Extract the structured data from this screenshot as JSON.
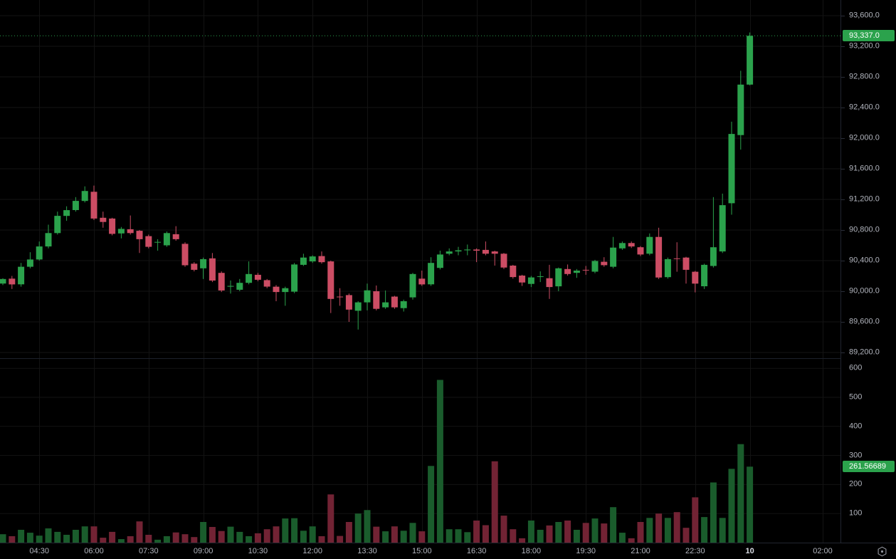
{
  "colors": {
    "background": "#000000",
    "grid": "#131313",
    "axis_text": "#b2b5be",
    "axis_text_bold": "#d8dbe3",
    "candle_up": "#2ba24c",
    "candle_down": "#cc4d64",
    "volume_up": "#1a5c2c",
    "volume_down": "#722334",
    "last_price_line": "#2ba24c",
    "price_badge_bg": "#2ba24c",
    "volume_badge_bg": "#2ba24c",
    "badge_text": "#ffffff"
  },
  "price_axis": {
    "current_price_label": "93,337.0",
    "labels": [
      {
        "text": "93,600.0",
        "price": 93600
      },
      {
        "text": "93,200.0",
        "price": 93200
      },
      {
        "text": "92,800.0",
        "price": 92800
      },
      {
        "text": "92,400.0",
        "price": 92400
      },
      {
        "text": "92,000.0",
        "price": 92000
      },
      {
        "text": "91,600.0",
        "price": 91600
      },
      {
        "text": "91,200.0",
        "price": 91200
      },
      {
        "text": "90,800.0",
        "price": 90800
      },
      {
        "text": "90,400.0",
        "price": 90400
      },
      {
        "text": "90,000.0",
        "price": 90000
      },
      {
        "text": "89,600.0",
        "price": 89600
      },
      {
        "text": "89,200.0",
        "price": 89200
      }
    ]
  },
  "volume_axis": {
    "current_volume_label": "261.56689",
    "labels": [
      {
        "text": "600",
        "value": 600
      },
      {
        "text": "500",
        "value": 500
      },
      {
        "text": "400",
        "value": 400
      },
      {
        "text": "300",
        "value": 300
      },
      {
        "text": "200",
        "value": 200
      },
      {
        "text": "100",
        "value": 100
      }
    ]
  },
  "time_axis": {
    "labels": [
      {
        "text": "04:30",
        "candle_index": 4,
        "bold": false
      },
      {
        "text": "06:00",
        "candle_index": 10,
        "bold": false
      },
      {
        "text": "07:30",
        "candle_index": 16,
        "bold": false
      },
      {
        "text": "09:00",
        "candle_index": 22,
        "bold": false
      },
      {
        "text": "10:30",
        "candle_index": 28,
        "bold": false
      },
      {
        "text": "12:00",
        "candle_index": 34,
        "bold": false
      },
      {
        "text": "13:30",
        "candle_index": 40,
        "bold": false
      },
      {
        "text": "15:00",
        "candle_index": 46,
        "bold": false
      },
      {
        "text": "16:30",
        "candle_index": 52,
        "bold": false
      },
      {
        "text": "18:00",
        "candle_index": 58,
        "bold": false
      },
      {
        "text": "19:30",
        "candle_index": 64,
        "bold": false
      },
      {
        "text": "21:00",
        "candle_index": 70,
        "bold": false
      },
      {
        "text": "22:30",
        "candle_index": 76,
        "bold": false
      },
      {
        "text": "10",
        "candle_index": 82,
        "bold": true
      },
      {
        "text": "02:00",
        "candle_index": 90,
        "bold": false
      }
    ]
  },
  "chart_data": {
    "type": "candlestick",
    "interval_minutes": 15,
    "panes": [
      "price",
      "volume"
    ],
    "price_axis_range": [
      89200,
      93600
    ],
    "volume_axis_range": [
      0,
      600
    ],
    "grid": true,
    "last_price": 93337.0,
    "last_volume": 261.56689,
    "columns": [
      "time",
      "open",
      "high",
      "low",
      "close",
      "volume"
    ],
    "candles": [
      [
        "03:30",
        90100,
        90170,
        90080,
        90160,
        29
      ],
      [
        "03:45",
        90165,
        90200,
        90030,
        90090,
        22
      ],
      [
        "04:00",
        90090,
        90370,
        90060,
        90320,
        44
      ],
      [
        "04:15",
        90320,
        90510,
        90300,
        90415,
        34
      ],
      [
        "04:30",
        90415,
        90650,
        90400,
        90585,
        24
      ],
      [
        "04:45",
        90585,
        90870,
        90560,
        90760,
        49
      ],
      [
        "05:00",
        90760,
        91040,
        90740,
        90985,
        37
      ],
      [
        "05:15",
        90985,
        91110,
        90920,
        91060,
        27
      ],
      [
        "05:30",
        91060,
        91230,
        91040,
        91180,
        44
      ],
      [
        "05:45",
        91180,
        91370,
        91160,
        91310,
        56
      ],
      [
        "06:00",
        91300,
        91380,
        90930,
        90950,
        56
      ],
      [
        "06:15",
        90960,
        91040,
        90830,
        90905,
        17
      ],
      [
        "06:30",
        90950,
        90960,
        90730,
        90750,
        37
      ],
      [
        "06:45",
        90755,
        90840,
        90690,
        90815,
        12
      ],
      [
        "07:00",
        90810,
        90990,
        90740,
        90760,
        22
      ],
      [
        "07:15",
        90790,
        90800,
        90500,
        90680,
        73
      ],
      [
        "07:30",
        90720,
        90740,
        90560,
        90580,
        27
      ],
      [
        "07:45",
        90640,
        90680,
        90530,
        90645,
        10
      ],
      [
        "08:00",
        90600,
        90780,
        90580,
        90760,
        22
      ],
      [
        "08:15",
        90745,
        90850,
        90660,
        90680,
        35
      ],
      [
        "08:30",
        90620,
        90640,
        90320,
        90340,
        29
      ],
      [
        "08:45",
        90360,
        90380,
        90260,
        90280,
        19
      ],
      [
        "09:00",
        90300,
        90440,
        90160,
        90420,
        71
      ],
      [
        "09:15",
        90430,
        90500,
        90120,
        90140,
        54
      ],
      [
        "09:30",
        90240,
        90260,
        89990,
        90010,
        40
      ],
      [
        "09:45",
        90060,
        90140,
        89970,
        90070,
        55
      ],
      [
        "10:00",
        90020,
        90160,
        90000,
        90110,
        37
      ],
      [
        "10:15",
        90110,
        90390,
        90090,
        90225,
        22
      ],
      [
        "10:30",
        90215,
        90240,
        90130,
        90150,
        32
      ],
      [
        "10:45",
        90145,
        90160,
        90040,
        90060,
        46
      ],
      [
        "11:00",
        90060,
        90080,
        89870,
        89990,
        56
      ],
      [
        "11:15",
        89990,
        90060,
        89810,
        90040,
        83
      ],
      [
        "11:30",
        89995,
        90370,
        89975,
        90350,
        84
      ],
      [
        "11:45",
        90345,
        90490,
        90330,
        90440,
        41
      ],
      [
        "12:00",
        90390,
        90470,
        90370,
        90455,
        56
      ],
      [
        "12:15",
        90460,
        90520,
        90360,
        90380,
        22
      ],
      [
        "12:30",
        90390,
        90400,
        89715,
        89900,
        166
      ],
      [
        "12:45",
        89930,
        90040,
        89810,
        89925,
        23
      ],
      [
        "13:00",
        89950,
        89970,
        89600,
        89760,
        71
      ],
      [
        "13:15",
        89745,
        89870,
        89500,
        89855,
        100
      ],
      [
        "13:30",
        89855,
        90100,
        89750,
        90012,
        112
      ],
      [
        "13:45",
        90000,
        90075,
        89750,
        89770,
        55
      ],
      [
        "14:00",
        89790,
        90010,
        89770,
        89855,
        39
      ],
      [
        "14:15",
        89930,
        89940,
        89770,
        89790,
        56
      ],
      [
        "14:30",
        89780,
        89890,
        89735,
        89870,
        41
      ],
      [
        "14:45",
        89920,
        90240,
        89890,
        90225,
        68
      ],
      [
        "15:00",
        90165,
        90270,
        90070,
        90090,
        39
      ],
      [
        "15:15",
        90090,
        90445,
        90070,
        90370,
        264
      ],
      [
        "15:30",
        90305,
        90530,
        90285,
        90480,
        560
      ],
      [
        "15:45",
        90490,
        90560,
        90470,
        90520,
        46
      ],
      [
        "16:00",
        90520,
        90580,
        90470,
        90535,
        46
      ],
      [
        "16:15",
        90535,
        90610,
        90470,
        90545,
        36
      ],
      [
        "16:30",
        90545,
        90560,
        90380,
        90530,
        76
      ],
      [
        "16:45",
        90540,
        90650,
        90470,
        90490,
        60
      ],
      [
        "17:00",
        90520,
        90530,
        90335,
        90490,
        280
      ],
      [
        "17:15",
        90490,
        90500,
        90290,
        90310,
        93
      ],
      [
        "17:30",
        90335,
        90345,
        90165,
        90185,
        46
      ],
      [
        "17:45",
        90205,
        90215,
        90070,
        90115,
        15
      ],
      [
        "18:00",
        90095,
        90200,
        90055,
        90180,
        76
      ],
      [
        "18:15",
        90190,
        90260,
        90120,
        90195,
        44
      ],
      [
        "18:30",
        90170,
        90345,
        89900,
        90055,
        59
      ],
      [
        "18:45",
        90065,
        90310,
        90000,
        90300,
        71
      ],
      [
        "19:00",
        90290,
        90350,
        90205,
        90225,
        76
      ],
      [
        "19:15",
        90240,
        90290,
        90175,
        90270,
        44
      ],
      [
        "19:30",
        90280,
        90330,
        90215,
        90275,
        68
      ],
      [
        "19:45",
        90255,
        90410,
        90235,
        90395,
        83
      ],
      [
        "20:00",
        90385,
        90445,
        90320,
        90340,
        66
      ],
      [
        "20:15",
        90320,
        90710,
        90300,
        90570,
        122
      ],
      [
        "20:30",
        90560,
        90650,
        90540,
        90630,
        34
      ],
      [
        "20:45",
        90630,
        90650,
        90565,
        90585,
        15
      ],
      [
        "21:00",
        90575,
        90590,
        90460,
        90480,
        71
      ],
      [
        "21:15",
        90490,
        90755,
        90470,
        90710,
        85
      ],
      [
        "21:30",
        90710,
        90830,
        90160,
        90180,
        100
      ],
      [
        "21:45",
        90185,
        90440,
        90165,
        90420,
        85
      ],
      [
        "22:00",
        90430,
        90640,
        90255,
        90425,
        105
      ],
      [
        "22:15",
        90440,
        90450,
        90100,
        90280,
        51
      ],
      [
        "22:30",
        90255,
        90265,
        89985,
        90100,
        156
      ],
      [
        "22:45",
        90065,
        90360,
        90030,
        90345,
        88
      ],
      [
        "23:00",
        90330,
        91230,
        90310,
        90575,
        207
      ],
      [
        "23:15",
        90520,
        91275,
        90500,
        91125,
        85
      ],
      [
        "23:30",
        91150,
        92215,
        91000,
        92055,
        254
      ],
      [
        "23:45",
        92040,
        92880,
        91850,
        92700,
        339
      ],
      [
        "00:00",
        92700,
        93380,
        92690,
        93337,
        261.56689
      ]
    ]
  },
  "icons": {
    "timezone_settings": "circle-dot"
  }
}
